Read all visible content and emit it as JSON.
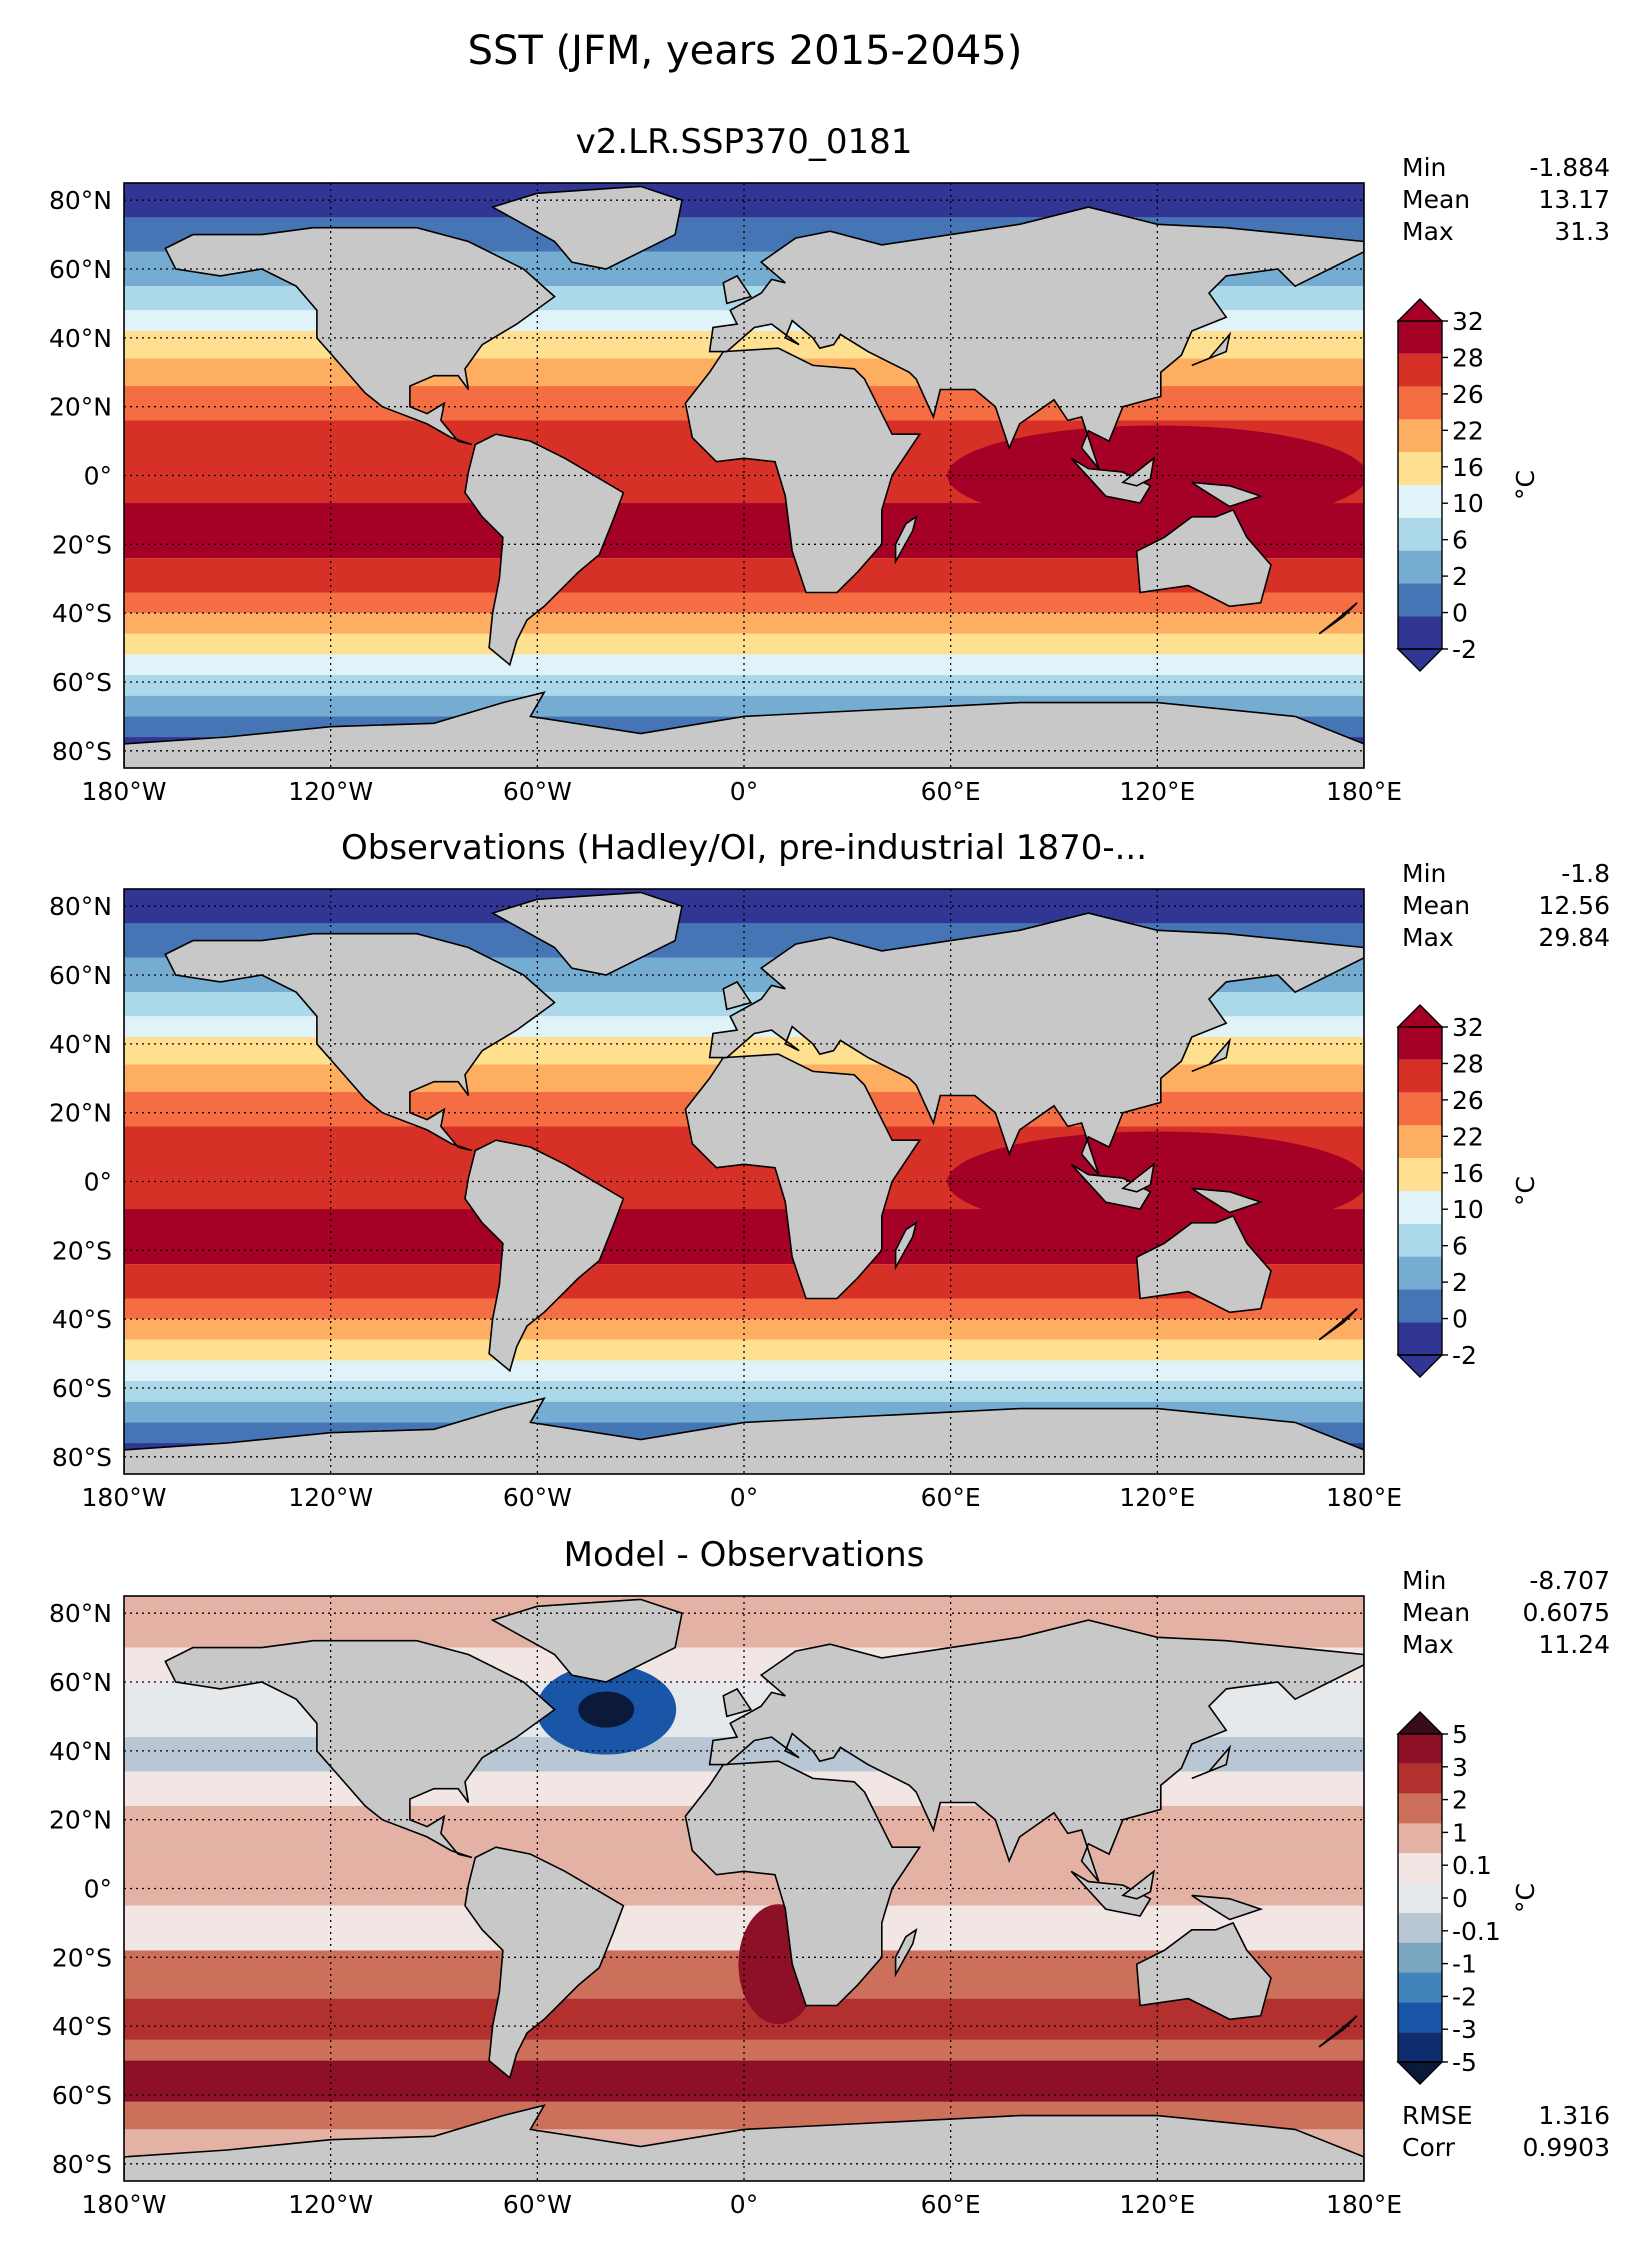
{
  "figure": {
    "title": "SST (JFM, years 2015-2045)"
  },
  "map_axes": {
    "lon_labels": [
      "180°W",
      "120°W",
      "60°W",
      "0°",
      "60°E",
      "120°E",
      "180°E"
    ],
    "lat_labels": [
      "80°N",
      "60°N",
      "40°N",
      "20°N",
      "0°",
      "20°S",
      "40°S",
      "60°S",
      "80°S"
    ]
  },
  "panels": [
    {
      "title": "v2.LR.SSP370_0181",
      "stats": [
        {
          "label": "Min",
          "value": "-1.884"
        },
        {
          "label": "Mean",
          "value": "13.17"
        },
        {
          "label": "Max",
          "value": "31.3"
        }
      ],
      "colorbar": {
        "unit": "°C",
        "ticks": [
          "32",
          "28",
          "26",
          "22",
          "16",
          "10",
          "6",
          "2",
          "0",
          "-2"
        ],
        "colors": [
          "#a50026",
          "#d73027",
          "#f46d43",
          "#fdae61",
          "#fee090",
          "#e0f3f8",
          "#abd9e9",
          "#74add1",
          "#4575b4",
          "#313695"
        ],
        "extend_top": "#a50026",
        "extend_bottom": "#313695"
      }
    },
    {
      "title": "Observations (Hadley/OI, pre-industrial 1870-...",
      "stats": [
        {
          "label": "Min",
          "value": "-1.8"
        },
        {
          "label": "Mean",
          "value": "12.56"
        },
        {
          "label": "Max",
          "value": "29.84"
        }
      ],
      "colorbar": {
        "unit": "°C",
        "ticks": [
          "32",
          "28",
          "26",
          "22",
          "16",
          "10",
          "6",
          "2",
          "0",
          "-2"
        ],
        "colors": [
          "#a50026",
          "#d73027",
          "#f46d43",
          "#fdae61",
          "#fee090",
          "#e0f3f8",
          "#abd9e9",
          "#74add1",
          "#4575b4",
          "#313695"
        ],
        "extend_top": "#a50026",
        "extend_bottom": "#313695"
      }
    },
    {
      "title": "Model - Observations",
      "stats": [
        {
          "label": "Min",
          "value": "-8.707"
        },
        {
          "label": "Mean",
          "value": "0.6075"
        },
        {
          "label": "Max",
          "value": "11.24"
        }
      ],
      "extra_stats": [
        {
          "label": "RMSE",
          "value": "1.316"
        },
        {
          "label": "Corr",
          "value": "0.9903"
        }
      ],
      "colorbar": {
        "unit": "°C",
        "ticks": [
          "5",
          "3",
          "2",
          "1",
          "0.1",
          "0",
          "-0.1",
          "-1",
          "-2",
          "-3",
          "-5"
        ],
        "colors": [
          "#8e1027",
          "#b2312f",
          "#cc6f5b",
          "#e3b2a4",
          "#f1e6e4",
          "#e6e9ec",
          "#b8c7d3",
          "#7aa7bf",
          "#3f84bb",
          "#1a56a8",
          "#0f2c6e"
        ],
        "extend_top": "#3a0b18",
        "extend_bottom": "#0b1a3a"
      }
    }
  ],
  "palette": {
    "land": "#c8c8c8",
    "coast": "#000000"
  }
}
